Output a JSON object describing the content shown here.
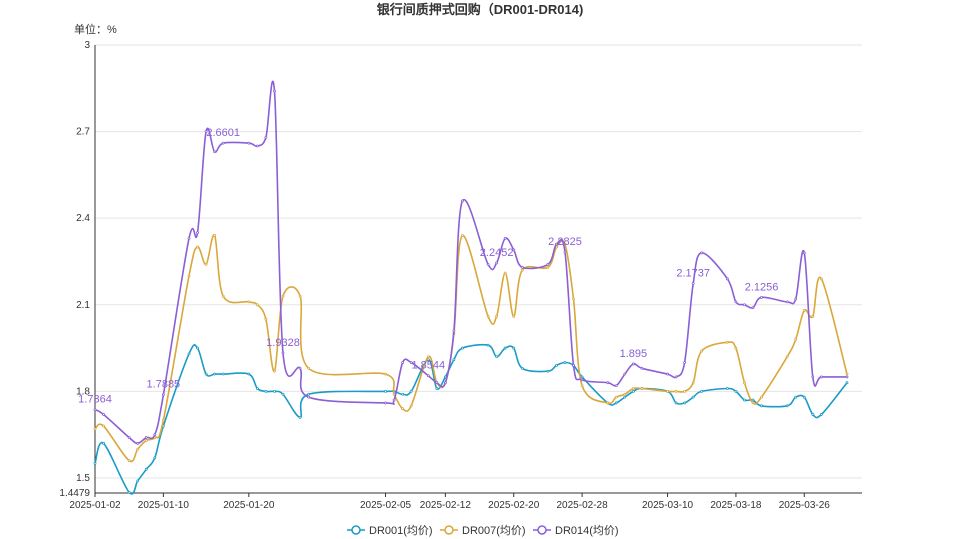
{
  "chart_data": {
    "type": "line",
    "title": "银行间质押式回购（DR001-DR014)",
    "unit_label": "单位：%",
    "xlabel": "",
    "ylabel": "",
    "ylim": [
      1.4479,
      3
    ],
    "y_ticks": [
      "1.4479",
      "1.5",
      "1.8",
      "2.1",
      "2.4",
      "2.7",
      "3"
    ],
    "x_ticks": [
      "2025-01-02",
      "2025-01-10",
      "2025-01-20",
      "2025-02-05",
      "2025-02-12",
      "2025-02-20",
      "2025-02-28",
      "2025-03-10",
      "2025-03-18",
      "2025-03-26"
    ],
    "grid": true,
    "legend_position": "bottom",
    "colors": {
      "DR001": "#1a9bc7",
      "DR007": "#d9a73a",
      "DR014": "#8a5fd6",
      "grid": "#e5e5e5",
      "axis": "#333333"
    },
    "x": [
      "2025-01-02",
      "2025-01-03",
      "2025-01-06",
      "2025-01-07",
      "2025-01-08",
      "2025-01-09",
      "2025-01-10",
      "2025-01-13",
      "2025-01-14",
      "2025-01-15",
      "2025-01-16",
      "2025-01-17",
      "2025-01-20",
      "2025-01-21",
      "2025-01-22",
      "2025-01-23",
      "2025-01-24",
      "2025-01-26",
      "2025-01-27",
      "2025-02-05",
      "2025-02-06",
      "2025-02-07",
      "2025-02-08",
      "2025-02-10",
      "2025-02-11",
      "2025-02-12",
      "2025-02-13",
      "2025-02-14",
      "2025-02-17",
      "2025-02-18",
      "2025-02-19",
      "2025-02-20",
      "2025-02-21",
      "2025-02-24",
      "2025-02-25",
      "2025-02-26",
      "2025-02-27",
      "2025-02-28",
      "2025-03-03",
      "2025-03-04",
      "2025-03-05",
      "2025-03-06",
      "2025-03-07",
      "2025-03-10",
      "2025-03-11",
      "2025-03-12",
      "2025-03-13",
      "2025-03-14",
      "2025-03-17",
      "2025-03-18",
      "2025-03-19",
      "2025-03-20",
      "2025-03-21",
      "2025-03-24",
      "2025-03-25",
      "2025-03-26",
      "2025-03-27",
      "2025-03-28",
      "2025-03-31"
    ],
    "series": [
      {
        "name": "DR001(均价)",
        "values": [
          1.55,
          1.62,
          1.45,
          1.49,
          1.53,
          1.57,
          1.68,
          1.93,
          1.95,
          1.86,
          1.86,
          1.86,
          1.86,
          1.81,
          1.8,
          1.8,
          1.79,
          1.71,
          1.79,
          1.8,
          1.8,
          1.79,
          1.8,
          1.91,
          1.81,
          1.85,
          1.91,
          1.95,
          1.96,
          1.92,
          1.95,
          1.95,
          1.88,
          1.87,
          1.89,
          1.9,
          1.89,
          1.85,
          1.76,
          1.76,
          1.78,
          1.8,
          1.81,
          1.8,
          1.76,
          1.76,
          1.78,
          1.8,
          1.81,
          1.8,
          1.77,
          1.77,
          1.75,
          1.75,
          1.78,
          1.78,
          1.72,
          1.72,
          1.83
        ]
      },
      {
        "name": "DR007(均价)",
        "values": [
          1.67,
          1.68,
          1.56,
          1.6,
          1.63,
          1.64,
          1.7,
          2.2,
          2.3,
          2.24,
          2.34,
          2.13,
          2.11,
          2.1,
          2.05,
          1.87,
          2.13,
          2.13,
          1.88,
          1.86,
          1.79,
          1.74,
          1.75,
          1.92,
          1.83,
          1.83,
          2.0,
          2.34,
          2.06,
          2.06,
          2.21,
          2.06,
          2.22,
          2.23,
          2.3,
          2.31,
          2.12,
          1.82,
          1.76,
          1.78,
          1.79,
          1.81,
          1.81,
          1.8,
          1.8,
          1.8,
          1.83,
          1.94,
          1.97,
          1.95,
          1.83,
          1.76,
          1.78,
          1.92,
          1.98,
          2.08,
          2.06,
          2.19,
          1.86
        ]
      },
      {
        "name": "DR014(均价)",
        "values": [
          1.7364,
          1.72,
          1.64,
          1.62,
          1.64,
          1.65,
          1.7885,
          2.33,
          2.35,
          2.7,
          2.63,
          2.6601,
          2.66,
          2.65,
          2.68,
          2.84,
          1.9328,
          1.88,
          1.78,
          1.76,
          1.77,
          1.9,
          1.9,
          1.8544,
          1.83,
          1.83,
          2.01,
          2.46,
          2.24,
          2.2452,
          2.33,
          2.29,
          2.23,
          2.24,
          2.31,
          2.2825,
          1.89,
          1.84,
          1.83,
          1.82,
          1.86,
          1.895,
          1.88,
          1.86,
          1.85,
          1.9,
          2.1737,
          2.28,
          2.19,
          2.11,
          2.1,
          2.09,
          2.1256,
          2.11,
          2.12,
          2.28,
          1.85,
          1.85,
          1.85
        ]
      }
    ],
    "point_labels": [
      {
        "series": 2,
        "index": 0,
        "text": "1.7364"
      },
      {
        "series": 2,
        "index": 6,
        "text": "1.7885"
      },
      {
        "series": 2,
        "index": 11,
        "text": "2.6601"
      },
      {
        "series": 2,
        "index": 16,
        "text": "1.9328"
      },
      {
        "series": 2,
        "index": 23,
        "text": "1.8544"
      },
      {
        "series": 2,
        "index": 29,
        "text": "2.2452"
      },
      {
        "series": 2,
        "index": 35,
        "text": "2.2825"
      },
      {
        "series": 2,
        "index": 41,
        "text": "1.895"
      },
      {
        "series": 2,
        "index": 46,
        "text": "2.1737"
      },
      {
        "series": 2,
        "index": 52,
        "text": "2.1256"
      }
    ],
    "legend": [
      "DR001(均价)",
      "DR007(均价)",
      "DR014(均价)"
    ]
  }
}
